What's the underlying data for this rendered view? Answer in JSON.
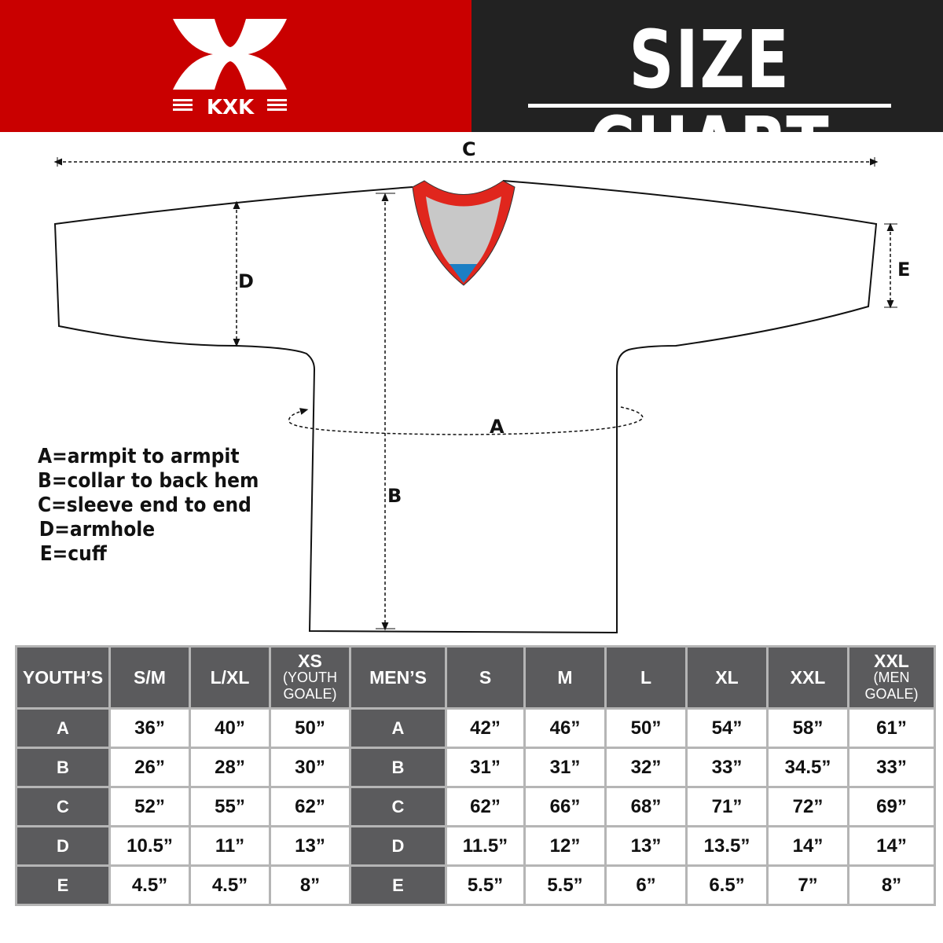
{
  "brand": {
    "logo_text": "KXK",
    "color": "#c90000"
  },
  "header": {
    "title": "SIZE CHART"
  },
  "diagram": {
    "labels": {
      "a": "A",
      "b": "B",
      "c": "C",
      "d": "D",
      "e": "E"
    },
    "colors": {
      "collar_trim": "#e0261d",
      "collar_inner": "#c8c8c8",
      "collar_tip": "#1b7fc4"
    }
  },
  "legend": [
    "A=armpit to armpit",
    "B=collar to back hem",
    "C=sleeve end to end",
    "D=armhole",
    "E=cuff"
  ],
  "table": {
    "youth_header": "YOUTH’S",
    "men_header": "MEN’S",
    "youth_sizes": [
      {
        "main": "S/M",
        "sub": ""
      },
      {
        "main": "L/XL",
        "sub": ""
      },
      {
        "main": "XS",
        "sub": "(YOUTH GOALE)"
      }
    ],
    "men_sizes": [
      {
        "main": "S",
        "sub": ""
      },
      {
        "main": "M",
        "sub": ""
      },
      {
        "main": "L",
        "sub": ""
      },
      {
        "main": "XL",
        "sub": ""
      },
      {
        "main": "XXL",
        "sub": ""
      },
      {
        "main": "XXL",
        "sub": "(MEN GOALE)"
      }
    ],
    "rows": [
      {
        "label": "A",
        "youth": [
          "36”",
          "40”",
          "50”"
        ],
        "men": [
          "42”",
          "46”",
          "50”",
          "54”",
          "58”",
          "61”"
        ]
      },
      {
        "label": "B",
        "youth": [
          "26”",
          "28”",
          "30”"
        ],
        "men": [
          "31”",
          "31”",
          "32”",
          "33”",
          "34.5”",
          "33”"
        ]
      },
      {
        "label": "C",
        "youth": [
          "52”",
          "55”",
          "62”"
        ],
        "men": [
          "62”",
          "66”",
          "68”",
          "71”",
          "72”",
          "69”"
        ]
      },
      {
        "label": "D",
        "youth": [
          "10.5”",
          "11”",
          "13”"
        ],
        "men": [
          "11.5”",
          "12”",
          "13”",
          "13.5”",
          "14”",
          "14”"
        ]
      },
      {
        "label": "E",
        "youth": [
          "4.5”",
          "4.5”",
          "8”"
        ],
        "men": [
          "5.5”",
          "5.5”",
          "6”",
          "6.5”",
          "7”",
          "8”"
        ]
      }
    ]
  }
}
